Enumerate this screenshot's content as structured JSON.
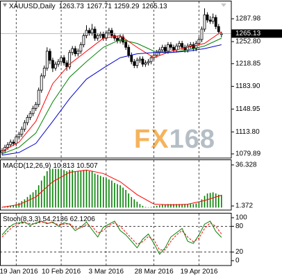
{
  "chart_data": [
    {
      "type": "candlestick",
      "title": "XAUUSD,Daily",
      "categories": [
        null,
        null,
        null,
        null,
        null,
        "19 Jan 2016",
        null,
        null,
        null,
        null,
        null,
        null,
        null,
        null,
        null,
        null,
        null,
        null,
        null,
        null,
        null,
        "10 Feb 2016",
        null,
        null,
        null,
        null,
        null,
        null,
        null,
        null,
        null,
        null,
        null,
        null,
        null,
        null,
        null,
        "3 Mar 2016",
        null,
        null,
        null,
        null,
        null,
        null,
        null,
        null,
        null,
        null,
        null,
        null,
        null,
        null,
        null,
        null,
        "28 Mar 2016",
        null,
        null,
        null,
        null,
        null,
        null,
        null,
        null,
        null,
        null,
        null,
        null,
        null,
        null,
        null,
        "19 Apr 2016",
        null,
        null,
        null,
        null,
        null,
        null,
        null,
        null
      ],
      "open": [
        1082,
        1085,
        1090,
        1094,
        1098,
        1096,
        1106,
        1110,
        1118,
        1128,
        1136,
        1142,
        1150,
        1156,
        1178,
        1200,
        1212,
        1238,
        1224,
        1212,
        1218,
        1222,
        1228,
        1220,
        1214,
        1236,
        1242,
        1234,
        1238,
        1248,
        1262,
        1270,
        1266,
        1272,
        1258,
        1262,
        1264,
        1258,
        1266,
        1270,
        1262,
        1258,
        1254,
        1260,
        1252,
        1244,
        1232,
        1222,
        1216,
        1224,
        1226,
        1218,
        1220,
        1222,
        1228,
        1232,
        1236,
        1240,
        1244,
        1238,
        1248,
        1244,
        1240,
        1246,
        1250,
        1244,
        1240,
        1246,
        1248,
        1242,
        1250,
        1256,
        1272,
        1294,
        1286,
        1284,
        1290,
        1276,
        1263.73
      ],
      "high": [
        1089,
        1094,
        1098,
        1102,
        1102,
        1110,
        1114,
        1122,
        1132,
        1140,
        1146,
        1154,
        1160,
        1182,
        1204,
        1216,
        1244,
        1242,
        1228,
        1222,
        1226,
        1232,
        1232,
        1224,
        1240,
        1246,
        1246,
        1242,
        1252,
        1266,
        1278,
        1274,
        1280,
        1276,
        1266,
        1268,
        1268,
        1270,
        1274,
        1274,
        1266,
        1262,
        1264,
        1264,
        1256,
        1248,
        1236,
        1226,
        1228,
        1230,
        1230,
        1224,
        1226,
        1232,
        1236,
        1240,
        1244,
        1248,
        1248,
        1252,
        1252,
        1248,
        1250,
        1254,
        1254,
        1248,
        1250,
        1252,
        1252,
        1254,
        1260,
        1276,
        1304,
        1298,
        1292,
        1296,
        1294,
        1280,
        1267.71
      ],
      "low": [
        1078,
        1081,
        1086,
        1090,
        1092,
        1092,
        1102,
        1106,
        1114,
        1124,
        1132,
        1138,
        1146,
        1152,
        1174,
        1196,
        1208,
        1218,
        1206,
        1208,
        1214,
        1218,
        1216,
        1208,
        1210,
        1232,
        1230,
        1230,
        1234,
        1244,
        1258,
        1262,
        1262,
        1254,
        1254,
        1258,
        1254,
        1254,
        1262,
        1258,
        1254,
        1250,
        1250,
        1248,
        1240,
        1228,
        1218,
        1212,
        1212,
        1220,
        1214,
        1214,
        1216,
        1218,
        1224,
        1228,
        1232,
        1236,
        1234,
        1234,
        1240,
        1236,
        1236,
        1242,
        1240,
        1236,
        1236,
        1242,
        1238,
        1238,
        1246,
        1252,
        1268,
        1282,
        1280,
        1280,
        1272,
        1264,
        1259.29
      ],
      "close": [
        1085,
        1090,
        1094,
        1098,
        1096,
        1106,
        1110,
        1118,
        1128,
        1136,
        1142,
        1150,
        1156,
        1178,
        1200,
        1212,
        1238,
        1224,
        1212,
        1218,
        1222,
        1228,
        1220,
        1214,
        1236,
        1242,
        1234,
        1238,
        1248,
        1262,
        1270,
        1266,
        1272,
        1258,
        1262,
        1264,
        1258,
        1266,
        1270,
        1262,
        1258,
        1254,
        1260,
        1252,
        1244,
        1232,
        1222,
        1216,
        1224,
        1226,
        1218,
        1220,
        1222,
        1228,
        1232,
        1236,
        1240,
        1244,
        1238,
        1248,
        1244,
        1240,
        1246,
        1250,
        1244,
        1240,
        1246,
        1248,
        1242,
        1250,
        1256,
        1272,
        1294,
        1286,
        1284,
        1290,
        1276,
        1268,
        1265.13
      ],
      "up_color": "#ffffff",
      "down_color": "#000000",
      "lines": [
        {
          "color": "#ff0000",
          "x": [
            0,
            6,
            12,
            18,
            24,
            30,
            36,
            42,
            48,
            54,
            60,
            66,
            72,
            78
          ],
          "values": [
            1084,
            1098,
            1130,
            1188,
            1218,
            1238,
            1258,
            1262,
            1244,
            1228,
            1238,
            1244,
            1250,
            1268
          ]
        },
        {
          "color": "#008000",
          "x": [
            0,
            6,
            12,
            18,
            24,
            30,
            36,
            42,
            48,
            54,
            60,
            66,
            72,
            78
          ],
          "values": [
            1080,
            1090,
            1112,
            1160,
            1198,
            1222,
            1244,
            1256,
            1250,
            1238,
            1236,
            1240,
            1246,
            1258
          ]
        },
        {
          "color": "#0000cc",
          "x": [
            0,
            6,
            12,
            18,
            24,
            30,
            36,
            42,
            48,
            54,
            60,
            66,
            72,
            78
          ],
          "values": [
            1078,
            1082,
            1096,
            1130,
            1165,
            1195,
            1212,
            1228,
            1234,
            1236,
            1236,
            1238,
            1242,
            1248
          ]
        }
      ],
      "xlim": [
        -0.75,
        81.5
      ],
      "ylim": [
        1073.5,
        1314.7
      ],
      "yticks": [
        1287.98,
        {
          "value": 1252.8,
          "label": "1252.80"
        },
        1218.85,
        {
          "value": 1183.9,
          "label": "1183.90"
        },
        1148.95,
        {
          "value": 1113.8,
          "label": "1113.80"
        },
        1079.89
      ],
      "grid": true,
      "watermark": {
        "parts": [
          "FX",
          "168"
        ],
        "colors": [
          "#f4a640",
          "#a9b3bd"
        ]
      }
    },
    {
      "type": "macd",
      "title": "MACD(12,26,9)",
      "values": [
        0.5,
        0.8,
        1.2,
        1.6,
        2,
        3,
        4,
        5.5,
        7,
        9,
        11,
        13,
        15,
        19,
        23,
        27,
        31,
        33,
        33,
        33,
        33,
        33,
        32,
        31,
        32,
        32,
        31,
        31,
        31,
        32,
        32,
        31,
        31,
        29,
        28,
        27,
        26,
        25,
        24,
        23,
        21,
        20,
        19,
        17,
        15,
        12,
        9,
        7,
        5,
        3,
        1.5,
        0.5,
        0.3,
        0.5,
        1,
        1.5,
        2,
        2.5,
        2.5,
        3,
        3,
        3,
        3,
        3,
        3,
        3,
        3,
        3,
        3,
        3.5,
        4.5,
        7,
        10,
        12,
        12.5,
        13,
        12,
        11,
        10.813
      ],
      "color": "#008000",
      "signal": {
        "color": "#ff0000",
        "x": [
          0,
          6,
          12,
          18,
          24,
          30,
          36,
          42,
          48,
          54,
          60,
          66,
          72,
          78
        ],
        "values": [
          0.3,
          2.5,
          9,
          22,
          30,
          32,
          29,
          22,
          11,
          3,
          2.2,
          2.8,
          6,
          10.507
        ]
      },
      "ylim": [
        -2.13,
        40.41
      ],
      "yticks": [
        36.328,
        1.372
      ]
    },
    {
      "type": "stochastic",
      "title": "Stoch(8,3,3)",
      "series": [
        {
          "color": "#008000",
          "x": [
            0,
            2,
            4,
            6,
            8,
            10,
            12,
            14,
            16,
            18,
            20,
            22,
            24,
            26,
            28,
            30,
            32,
            34,
            36,
            38,
            40,
            42,
            44,
            46,
            48,
            50,
            52,
            54,
            56,
            58,
            60,
            62,
            64,
            66,
            68,
            70,
            72,
            74,
            76,
            78
          ],
          "values": [
            60,
            75,
            85,
            88,
            90,
            82,
            88,
            92,
            86,
            90,
            80,
            88,
            85,
            70,
            78,
            90,
            72,
            55,
            78,
            85,
            92,
            70,
            60,
            45,
            30,
            50,
            62,
            40,
            15,
            30,
            55,
            65,
            75,
            45,
            40,
            60,
            85,
            92,
            68,
            54.2136
          ]
        },
        {
          "color": "#ff0000",
          "x": [
            0,
            2,
            4,
            6,
            8,
            10,
            12,
            14,
            16,
            18,
            20,
            22,
            24,
            26,
            28,
            30,
            32,
            34,
            36,
            38,
            40,
            42,
            44,
            46,
            48,
            50,
            52,
            54,
            56,
            58,
            60,
            62,
            64,
            66,
            68,
            70,
            72,
            74,
            76,
            78
          ],
          "values": [
            55,
            68,
            80,
            86,
            88,
            86,
            86,
            90,
            88,
            88,
            84,
            85,
            86,
            76,
            76,
            84,
            80,
            64,
            70,
            82,
            88,
            80,
            66,
            52,
            38,
            44,
            56,
            48,
            25,
            25,
            45,
            60,
            70,
            55,
            44,
            52,
            75,
            88,
            80,
            62.1206
          ]
        }
      ],
      "levels": [
        80,
        20
      ],
      "ylim": [
        -11.3,
        109.7
      ],
      "yticks": [
        100,
        80,
        20,
        0
      ]
    }
  ]
}
